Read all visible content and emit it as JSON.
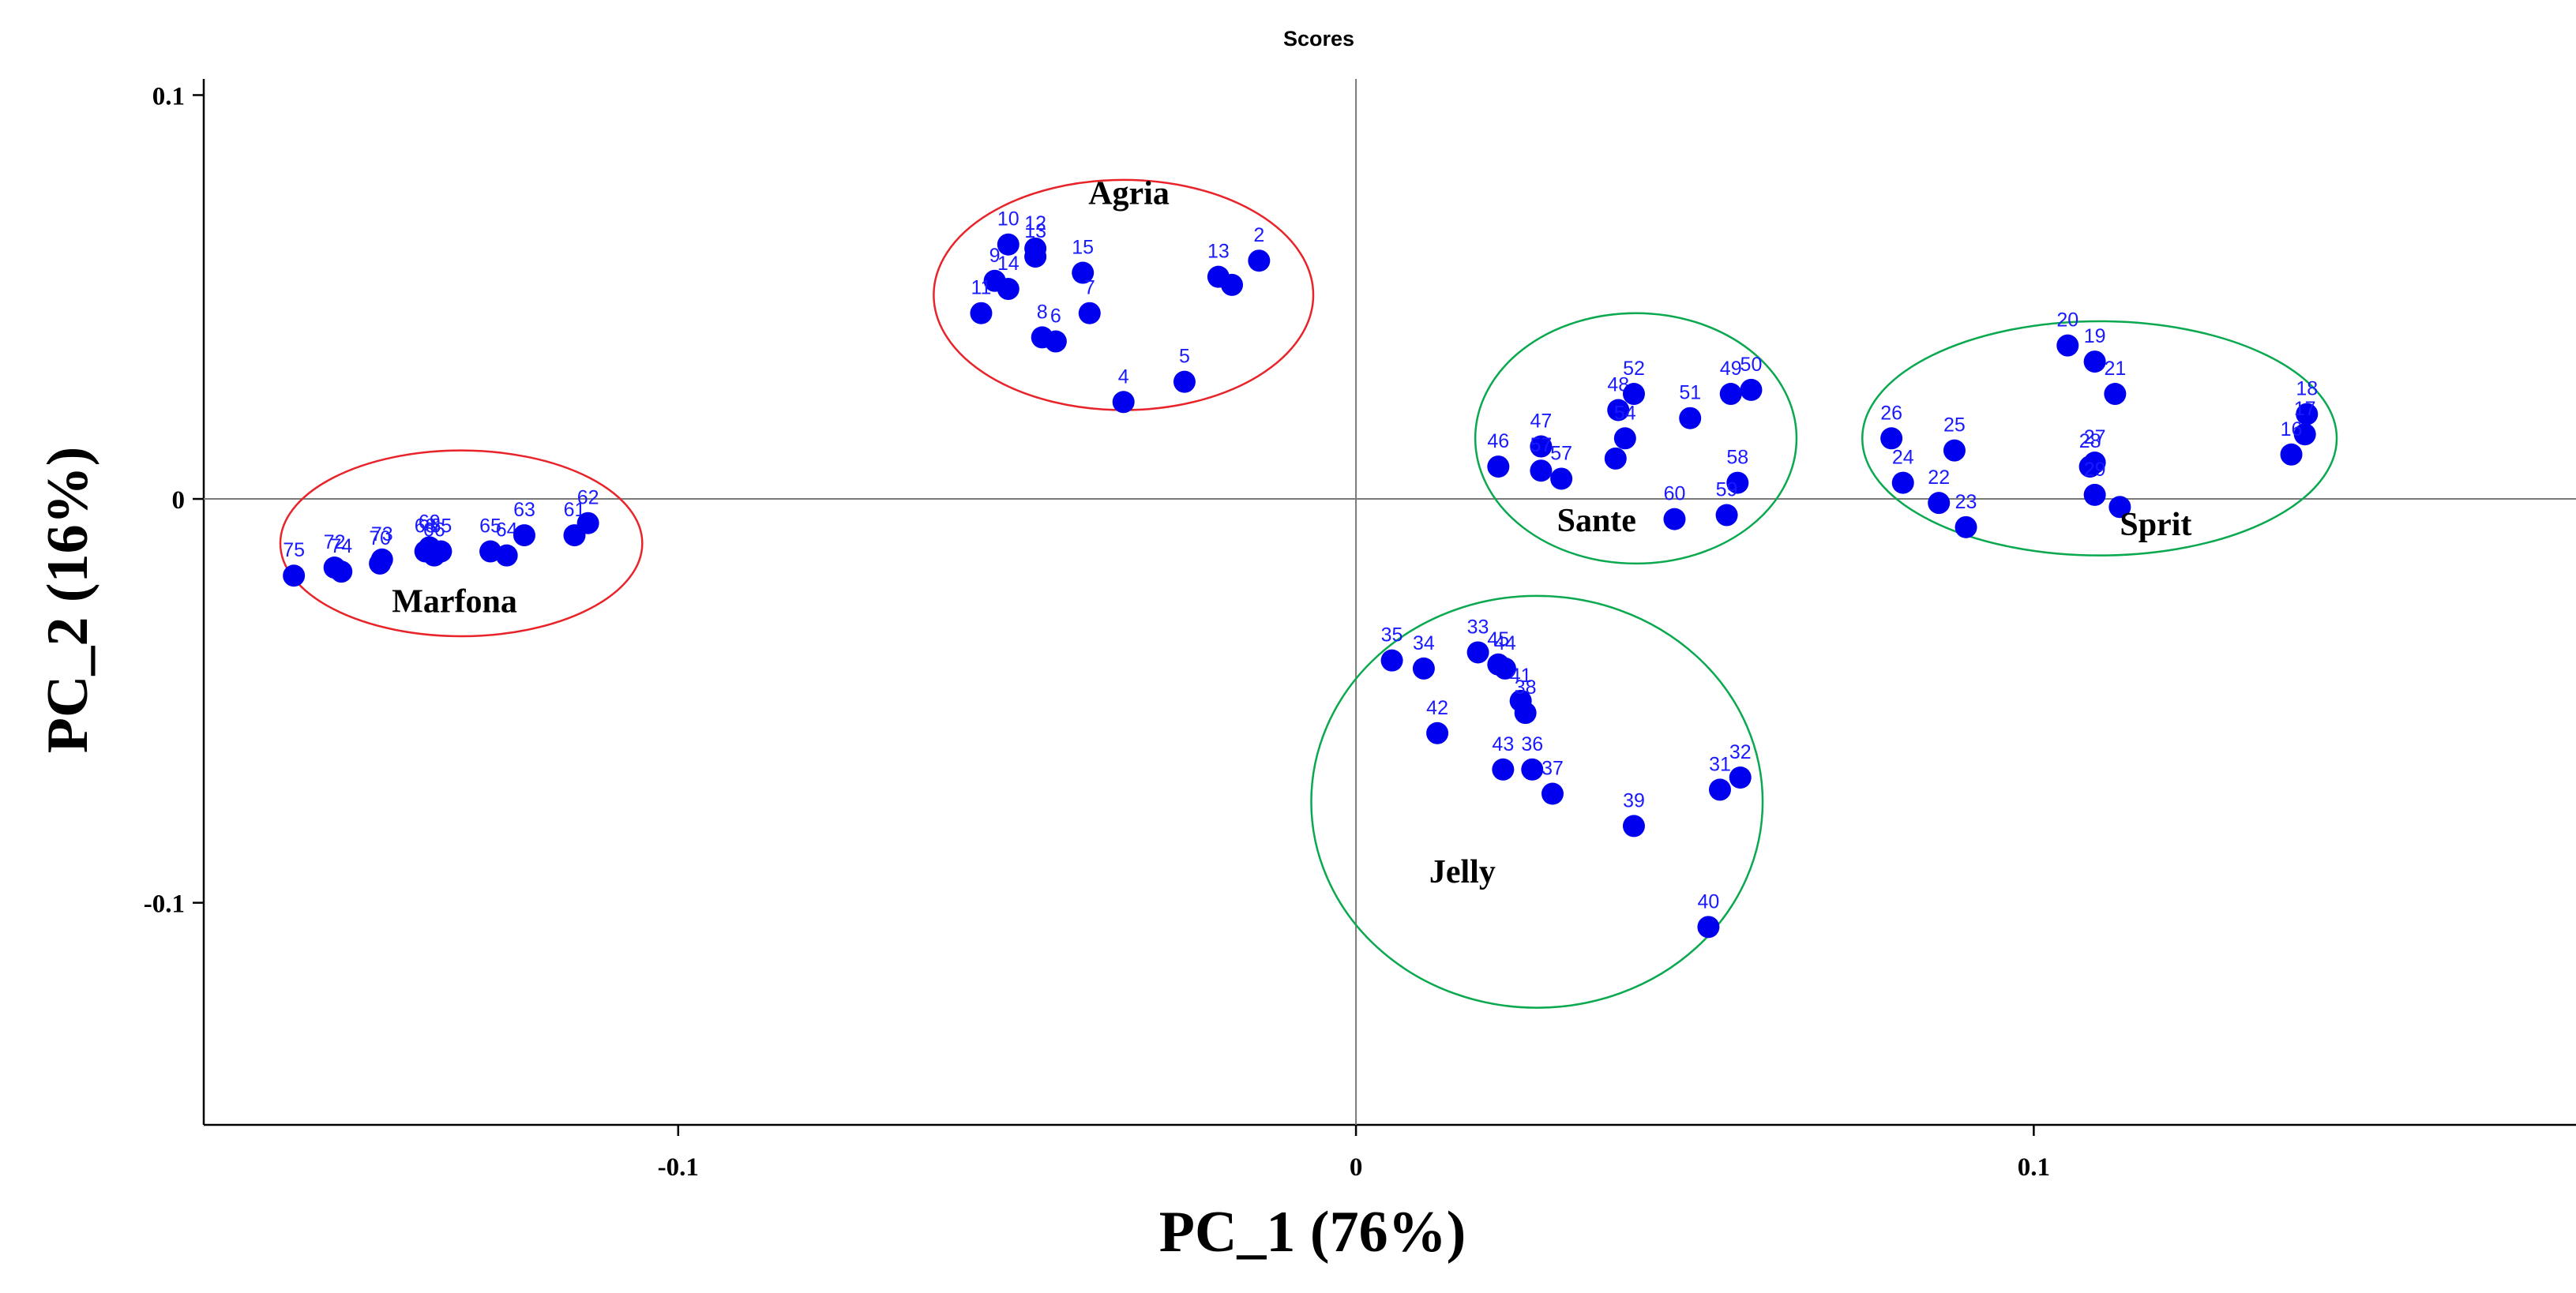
{
  "chart_data": {
    "type": "scatter",
    "title": "Scores",
    "xlabel": "PC_1 (76%)",
    "ylabel": "PC_2 (16%)",
    "xlim": [
      -0.17,
      0.18
    ],
    "ylim": [
      -0.155,
      0.104
    ],
    "xticks": [
      {
        "value": -0.1,
        "label": "-0.1"
      },
      {
        "value": 0,
        "label": "0"
      },
      {
        "value": 0.1,
        "label": "0.1"
      }
    ],
    "yticks": [
      {
        "value": 0.1,
        "label": "0.1"
      },
      {
        "value": 0,
        "label": "0"
      },
      {
        "value": -0.1,
        "label": "-0.1"
      }
    ],
    "marker_color": "#0000ee",
    "label_color": "#1a1aff",
    "points": [
      {
        "label": "2",
        "x": -0.0143,
        "y": 0.059
      },
      {
        "label": "13",
        "x": -0.0203,
        "y": 0.055
      },
      {
        "label": "",
        "x": -0.0183,
        "y": 0.053
      },
      {
        "label": "4",
        "x": -0.0343,
        "y": 0.024
      },
      {
        "label": "5",
        "x": -0.0253,
        "y": 0.029
      },
      {
        "label": "10",
        "x": -0.0513,
        "y": 0.063
      },
      {
        "label": "12",
        "x": -0.0473,
        "y": 0.062
      },
      {
        "label": "13",
        "x": -0.0473,
        "y": 0.06
      },
      {
        "label": "9",
        "x": -0.0533,
        "y": 0.054
      },
      {
        "label": "14",
        "x": -0.0513,
        "y": 0.052
      },
      {
        "label": "11",
        "x": -0.0553,
        "y": 0.046
      },
      {
        "label": "15",
        "x": -0.0403,
        "y": 0.056
      },
      {
        "label": "7",
        "x": -0.0393,
        "y": 0.046
      },
      {
        "label": "8",
        "x": -0.0463,
        "y": 0.04
      },
      {
        "label": "6",
        "x": -0.0443,
        "y": 0.039
      },
      {
        "label": "46",
        "x": 0.021,
        "y": 0.008
      },
      {
        "label": "47",
        "x": 0.0273,
        "y": 0.013
      },
      {
        "label": "57",
        "x": 0.0273,
        "y": 0.007
      },
      {
        "label": "57",
        "x": 0.0303,
        "y": 0.005
      },
      {
        "label": "48",
        "x": 0.0387,
        "y": 0.022
      },
      {
        "label": "52",
        "x": 0.041,
        "y": 0.026
      },
      {
        "label": "54",
        "x": 0.0397,
        "y": 0.015
      },
      {
        "label": "",
        "x": 0.0383,
        "y": 0.01
      },
      {
        "label": "51",
        "x": 0.0493,
        "y": 0.02
      },
      {
        "label": "49",
        "x": 0.0553,
        "y": 0.026
      },
      {
        "label": "50",
        "x": 0.0583,
        "y": 0.027
      },
      {
        "label": "58",
        "x": 0.0563,
        "y": 0.004
      },
      {
        "label": "60",
        "x": 0.047,
        "y": -0.005
      },
      {
        "label": "59",
        "x": 0.0547,
        "y": -0.004
      },
      {
        "label": "20",
        "x": 0.105,
        "y": 0.038
      },
      {
        "label": "19",
        "x": 0.109,
        "y": 0.034
      },
      {
        "label": "21",
        "x": 0.112,
        "y": 0.026
      },
      {
        "label": "26",
        "x": 0.079,
        "y": 0.015
      },
      {
        "label": "25",
        "x": 0.0883,
        "y": 0.012
      },
      {
        "label": "24",
        "x": 0.0807,
        "y": 0.004
      },
      {
        "label": "27",
        "x": 0.109,
        "y": 0.009
      },
      {
        "label": "28",
        "x": 0.1083,
        "y": 0.008
      },
      {
        "label": "22",
        "x": 0.086,
        "y": -0.001
      },
      {
        "label": "23",
        "x": 0.09,
        "y": -0.007
      },
      {
        "label": "29",
        "x": 0.109,
        "y": 0.001
      },
      {
        "label": "",
        "x": 0.1127,
        "y": -0.002
      },
      {
        "label": "18",
        "x": 0.1403,
        "y": 0.021
      },
      {
        "label": "17",
        "x": 0.14,
        "y": 0.016
      },
      {
        "label": "16",
        "x": 0.138,
        "y": 0.011
      },
      {
        "label": "35",
        "x": 0.0053,
        "y": -0.04
      },
      {
        "label": "34",
        "x": 0.01,
        "y": -0.042
      },
      {
        "label": "33",
        "x": 0.018,
        "y": -0.038
      },
      {
        "label": "45",
        "x": 0.021,
        "y": -0.041
      },
      {
        "label": "44",
        "x": 0.022,
        "y": -0.042
      },
      {
        "label": "41",
        "x": 0.0243,
        "y": -0.05
      },
      {
        "label": "38",
        "x": 0.025,
        "y": -0.053
      },
      {
        "label": "42",
        "x": 0.012,
        "y": -0.058
      },
      {
        "label": "43",
        "x": 0.0217,
        "y": -0.067
      },
      {
        "label": "36",
        "x": 0.026,
        "y": -0.067
      },
      {
        "label": "37",
        "x": 0.029,
        "y": -0.073
      },
      {
        "label": "39",
        "x": 0.041,
        "y": -0.081
      },
      {
        "label": "31",
        "x": 0.0537,
        "y": -0.072
      },
      {
        "label": "32",
        "x": 0.0567,
        "y": -0.069
      },
      {
        "label": "40",
        "x": 0.052,
        "y": -0.106
      },
      {
        "label": "75",
        "x": -0.1567,
        "y": -0.019
      },
      {
        "label": "72",
        "x": -0.1507,
        "y": -0.017
      },
      {
        "label": "74",
        "x": -0.1497,
        "y": -0.018
      },
      {
        "label": "70",
        "x": -0.144,
        "y": -0.016
      },
      {
        "label": "73",
        "x": -0.1437,
        "y": -0.015
      },
      {
        "label": "68",
        "x": -0.1373,
        "y": -0.013
      },
      {
        "label": "69",
        "x": -0.1367,
        "y": -0.012
      },
      {
        "label": "65",
        "x": -0.135,
        "y": -0.013
      },
      {
        "label": "66",
        "x": -0.136,
        "y": -0.014
      },
      {
        "label": "65",
        "x": -0.1277,
        "y": -0.013
      },
      {
        "label": "64",
        "x": -0.1253,
        "y": -0.014
      },
      {
        "label": "63",
        "x": -0.1227,
        "y": -0.009
      },
      {
        "label": "61",
        "x": -0.1153,
        "y": -0.009
      },
      {
        "label": "62",
        "x": -0.1133,
        "y": -0.006
      }
    ],
    "groups": [
      {
        "name": "Agria",
        "color": "#e8242a",
        "cx": -0.0343,
        "cy": 0.0505,
        "rx": 0.028,
        "ry": 0.0285,
        "label_x": -0.0335,
        "label_y": 0.073
      },
      {
        "name": "Sante",
        "color": "#0aa84f",
        "cx": 0.0413,
        "cy": 0.015,
        "rx": 0.0237,
        "ry": 0.031,
        "label_x": 0.0355,
        "label_y": -0.008
      },
      {
        "name": "Sprit",
        "color": "#0aa84f",
        "cx": 0.1097,
        "cy": 0.015,
        "rx": 0.035,
        "ry": 0.029,
        "label_x": 0.118,
        "label_y": -0.009
      },
      {
        "name": "Jelly",
        "color": "#0aa84f",
        "cx": 0.0267,
        "cy": -0.075,
        "rx": 0.0333,
        "ry": 0.051,
        "label_x": 0.0157,
        "label_y": -0.095
      },
      {
        "name": "Marfona",
        "color": "#e8242a",
        "cx": -0.132,
        "cy": -0.011,
        "rx": 0.0267,
        "ry": 0.023,
        "label_x": -0.133,
        "label_y": -0.028
      }
    ]
  }
}
